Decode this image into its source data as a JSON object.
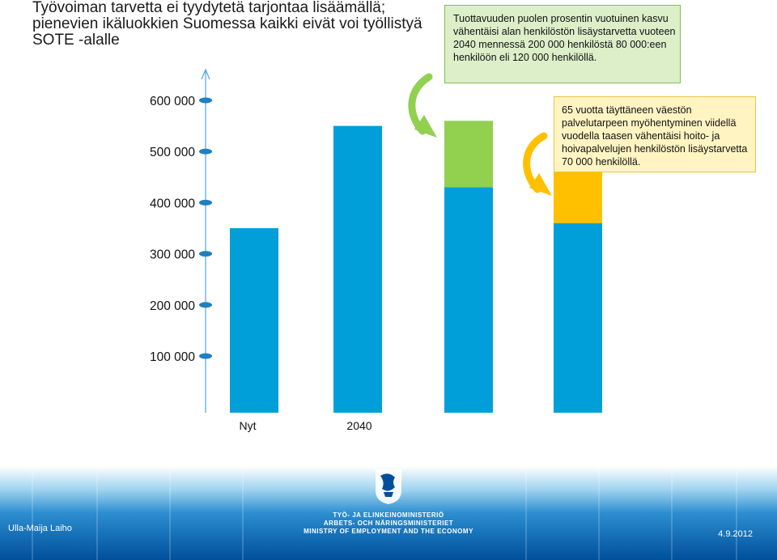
{
  "title": "Työvoiman tarvetta ei tyydytetä tarjontaa lisäämällä; pienevien ikäluokkien Suomessa kaikki eivät voi työllistyä SOTE -alalle",
  "callout_green": {
    "text": "Tuottavuuden puolen prosentin vuotuinen kasvu vähentäisi alan henkilöstön lisäystarvetta vuoteen 2040 mennessä 200 000 henkilöstä 80 000:een henkilöön eli 120 000 henkilöllä.",
    "color": "#92d050"
  },
  "callout_yellow": {
    "text": "65 vuotta täyttäneen väestön palvelutarpeen myöhentyminen viidellä vuodella taasen vähentäisi hoito- ja hoivapalvelujen henkilöstön lisäystarvetta 70 000 henkilöllä.",
    "color": "#ffc000"
  },
  "chart_data": {
    "type": "bar",
    "categories": [
      "Nyt",
      "2040",
      "",
      ""
    ],
    "ylim": [
      0,
      650000
    ],
    "y_ticks": [
      100000,
      200000,
      300000,
      400000,
      500000,
      600000
    ],
    "y_tick_labels": [
      "100 000",
      "200 000",
      "300 000",
      "400 000",
      "500 000",
      "600 000"
    ],
    "bars": [
      {
        "segments": [
          {
            "value": 350000,
            "color": "#009fda"
          }
        ]
      },
      {
        "segments": [
          {
            "value": 550000,
            "color": "#009fda"
          }
        ]
      },
      {
        "segments": [
          {
            "value": 430000,
            "color": "#009fda"
          },
          {
            "value": 130000,
            "color": "#92d050"
          }
        ]
      },
      {
        "segments": [
          {
            "value": 360000,
            "color": "#009fda"
          },
          {
            "value": 100000,
            "color": "#ffc000"
          }
        ]
      }
    ],
    "axis_color": "#4da6d8",
    "tick_marker_color": "#1f7fc0"
  },
  "footer": {
    "author": "Ulla-Maija Laiho",
    "org_line1": "TYÖ- JA ELINKEINOMINISTERIÖ",
    "org_line2": "ARBETS- OCH NÄRINGSMINISTERIET",
    "org_line3": "MINISTRY OF EMPLOYMENT AND THE ECONOMY",
    "date": "4.9.2012"
  }
}
